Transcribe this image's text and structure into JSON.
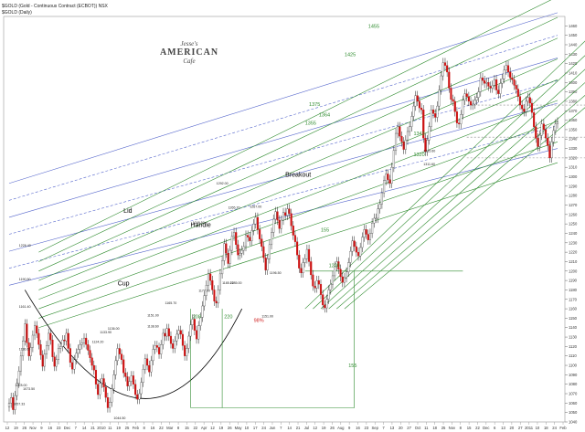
{
  "header": {
    "symbol_title": "$GOLD (Gold - Continuous Contract (ECBOT)) NSX",
    "legend": "$GOLD (Daily)"
  },
  "logo": {
    "line1": "Jesse's",
    "line2": "AMERICAN",
    "line3": "Cafe"
  },
  "chart_data": {
    "type": "candlestick",
    "ylim": [
      1040,
      1470
    ],
    "yticks": [
      1040,
      1050,
      1060,
      1070,
      1080,
      1090,
      1100,
      1110,
      1120,
      1130,
      1140,
      1150,
      1160,
      1170,
      1180,
      1190,
      1200,
      1210,
      1220,
      1230,
      1240,
      1250,
      1260,
      1270,
      1280,
      1290,
      1300,
      1310,
      1320,
      1330,
      1340,
      1350,
      1360,
      1370,
      1380,
      1390,
      1400,
      1410,
      1420,
      1430,
      1440,
      1450,
      1460
    ],
    "xlabels": [
      "12",
      "19",
      "26",
      "Nov",
      "9",
      "16",
      "23",
      "Dec",
      "7",
      "14",
      "21",
      "2010",
      "11",
      "19",
      "25",
      "Feb",
      "8",
      "16",
      "22",
      "Mar",
      "8",
      "15",
      "22",
      "Apr",
      "12",
      "19",
      "26",
      "May",
      "10",
      "17",
      "24",
      "Jun",
      "7",
      "14",
      "21",
      "Jul",
      "12",
      "19",
      "26",
      "Aug",
      "9",
      "16",
      "23",
      "Sep",
      "7",
      "13",
      "20",
      "27",
      "Oct",
      "11",
      "18",
      "25",
      "Nov",
      "8",
      "15",
      "22",
      "Dec",
      "6",
      "13",
      "20",
      "27",
      "2011",
      "10",
      "18",
      "24",
      "Feb"
    ],
    "xlim": [
      0,
      340
    ],
    "close": [
      1060,
      1066,
      1053,
      1068,
      1081,
      1094,
      1110,
      1126,
      1144,
      1124,
      1110,
      1119,
      1132,
      1142,
      1134,
      1122,
      1111,
      1099,
      1112,
      1121,
      1134,
      1127,
      1109,
      1099,
      1106,
      1118,
      1120,
      1127,
      1126,
      1134,
      1118,
      1103,
      1096,
      1106,
      1113,
      1117,
      1122,
      1124,
      1129,
      1122,
      1116,
      1108,
      1100,
      1095,
      1080,
      1069,
      1081,
      1086,
      1077,
      1066,
      1055,
      1061,
      1075,
      1090,
      1105,
      1118,
      1112,
      1106,
      1092,
      1088,
      1078,
      1083,
      1089,
      1080,
      1069,
      1064,
      1070,
      1082,
      1096,
      1107,
      1100,
      1093,
      1105,
      1117,
      1121,
      1119,
      1112,
      1122,
      1134,
      1131,
      1139,
      1131,
      1123,
      1118,
      1126,
      1133,
      1137,
      1133,
      1121,
      1110,
      1118,
      1131,
      1143,
      1149,
      1137,
      1128,
      1142,
      1151,
      1163,
      1174,
      1185,
      1197,
      1190,
      1180,
      1168,
      1166,
      1180,
      1197,
      1211,
      1229,
      1219,
      1208,
      1222,
      1237,
      1241,
      1228,
      1217,
      1219,
      1222,
      1226,
      1238,
      1236,
      1232,
      1243,
      1250,
      1257,
      1244,
      1234,
      1226,
      1214,
      1201,
      1213,
      1228,
      1241,
      1255,
      1263,
      1254,
      1245,
      1254,
      1262,
      1259,
      1266,
      1261,
      1248,
      1238,
      1231,
      1217,
      1203,
      1198,
      1209,
      1213,
      1223,
      1210,
      1196,
      1184,
      1182,
      1190,
      1186,
      1175,
      1164,
      1161,
      1170,
      1180,
      1186,
      1195,
      1205,
      1210,
      1202,
      1194,
      1188,
      1193,
      1199,
      1209,
      1221,
      1232,
      1226,
      1220,
      1216,
      1225,
      1236,
      1244,
      1239,
      1233,
      1240,
      1251,
      1256,
      1256,
      1266,
      1271,
      1283,
      1296,
      1303,
      1297,
      1293,
      1310,
      1328,
      1346,
      1353,
      1343,
      1337,
      1329,
      1339,
      1348,
      1353,
      1364,
      1375,
      1386,
      1380,
      1373,
      1371,
      1341,
      1327,
      1339,
      1353,
      1371,
      1367,
      1363,
      1375,
      1392,
      1407,
      1421,
      1418,
      1411,
      1394,
      1382,
      1380,
      1369,
      1357,
      1356,
      1366,
      1381,
      1388,
      1385,
      1380,
      1376,
      1377,
      1381,
      1384,
      1390,
      1405,
      1402,
      1399,
      1400,
      1396,
      1394,
      1397,
      1403,
      1392,
      1388,
      1399,
      1404,
      1413,
      1418,
      1411,
      1405,
      1403,
      1397,
      1393,
      1385,
      1376,
      1372,
      1369,
      1380,
      1384,
      1378,
      1368,
      1353,
      1341,
      1332,
      1344,
      1356,
      1350,
      1341,
      1333,
      1320,
      1337,
      1349,
      1356,
      1358
    ],
    "annotations": [
      {
        "text": "Lid",
        "type": "label"
      },
      {
        "text": "Handle",
        "type": "label"
      },
      {
        "text": "Cup",
        "type": "label"
      },
      {
        "text": "Breakout",
        "type": "label"
      },
      {
        "text": "208",
        "type": "measure"
      },
      {
        "text": "220",
        "type": "measure"
      },
      {
        "text": "155",
        "type": "measure"
      },
      {
        "text": "155",
        "type": "measure"
      },
      {
        "text": "1200",
        "type": "level"
      },
      {
        "text": "1425",
        "type": "level"
      },
      {
        "text": "1455",
        "type": "level"
      },
      {
        "text": "1375",
        "type": "level"
      },
      {
        "text": "1364",
        "type": "level"
      },
      {
        "text": "1355",
        "type": "level"
      },
      {
        "text": "1343",
        "type": "level"
      },
      {
        "text": "1320",
        "type": "level"
      },
      {
        "text": "98%",
        "type": "pct"
      }
    ],
    "price_notes": [
      "1226.40",
      "1190.50",
      "1161.40",
      "1116.60",
      "1078.00",
      "1057.33",
      "1073.50",
      "1044.50",
      "1124.20",
      "1133.90",
      "1136.00",
      "1165.70",
      "1138.60",
      "1151.00",
      "1185.22",
      "1185.00",
      "1265.70",
      "1249.50",
      "1177.90",
      "1292.00",
      "1196.50",
      "1267.00",
      "1151.00",
      "1325.60",
      "1311.60"
    ]
  }
}
